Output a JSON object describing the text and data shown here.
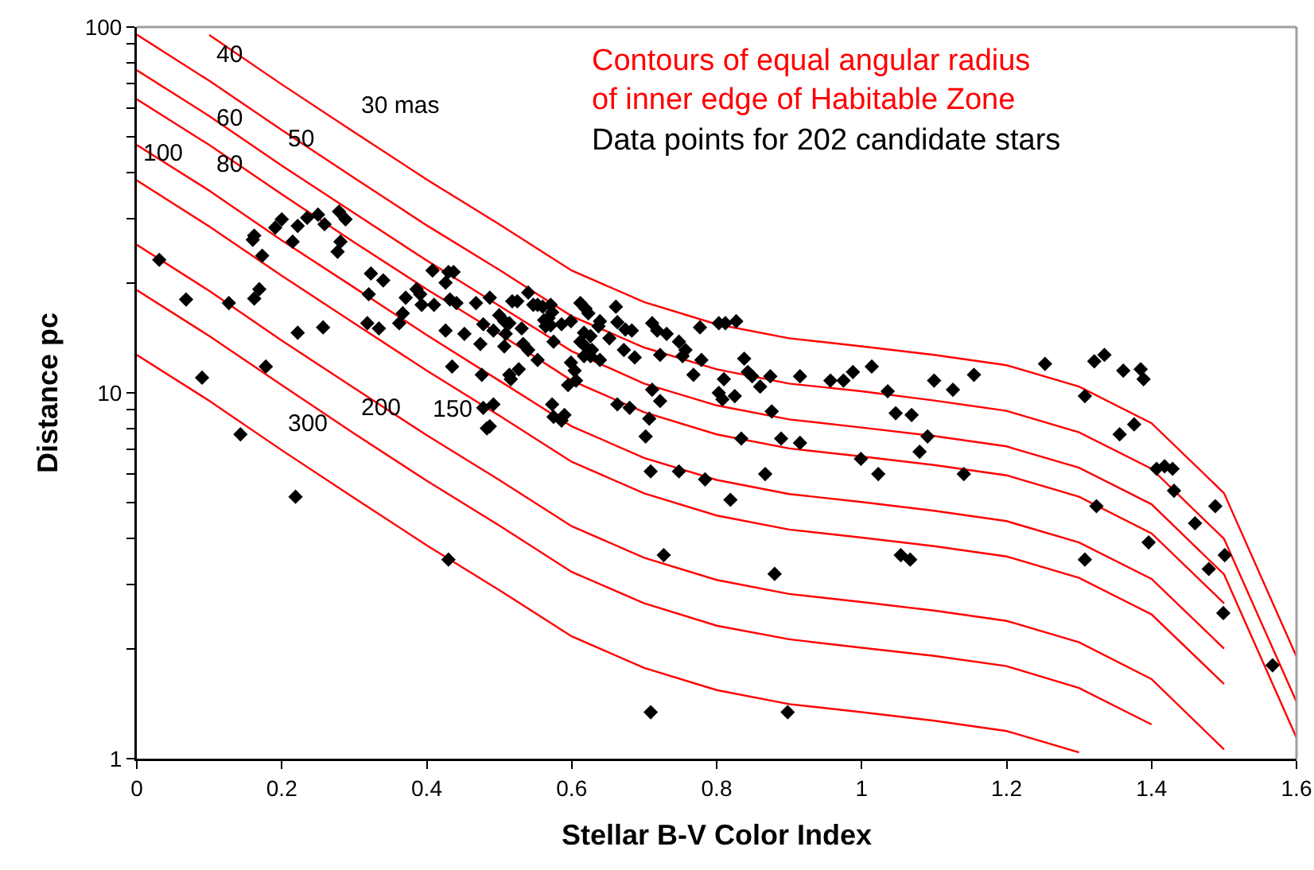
{
  "chart_data": {
    "type": "scatter",
    "xlabel": "Stellar B-V Color Index",
    "ylabel": "Distance pc",
    "log": "y",
    "grid": false,
    "legend": "top right",
    "xlim": [
      0,
      1.6
    ],
    "xticks": [
      0,
      0.2,
      0.4,
      0.6,
      0.8,
      1,
      1.2,
      1.4,
      1.6
    ],
    "ylim": [
      1,
      100
    ],
    "yticks": [
      1,
      {
        "value": 2,
        "label": null
      },
      {
        "value": 3,
        "label": null
      },
      {
        "value": 4,
        "label": null
      },
      {
        "value": 5,
        "label": null
      },
      {
        "value": 6,
        "label": null
      },
      {
        "value": 7,
        "label": null
      },
      {
        "value": 8,
        "label": null
      },
      {
        "value": 9,
        "label": null
      },
      10,
      {
        "value": 20,
        "label": null
      },
      {
        "value": 30,
        "label": null
      },
      {
        "value": 40,
        "label": null
      },
      {
        "value": 50,
        "label": null
      },
      {
        "value": 60,
        "label": null
      },
      {
        "value": 70,
        "label": null
      },
      {
        "value": 80,
        "label": null
      },
      {
        "value": 90,
        "label": null
      },
      100
    ],
    "annotations": [
      {
        "text": "30 mas",
        "x": 0.3,
        "y": 51.6
      },
      {
        "text": "40",
        "x": 0.1,
        "y": 71.3
      },
      {
        "text": "60",
        "x": 0.1,
        "y": 47.6
      },
      {
        "text": "50",
        "x": 0.2,
        "y": 41.8
      },
      {
        "text": "100",
        "x": 0,
        "y": 38.1
      },
      {
        "text": "80",
        "x": 0.1,
        "y": 35.7
      },
      {
        "text": "150",
        "x": 0.4,
        "y": 7.66
      },
      {
        "text": "200",
        "x": 0.3,
        "y": 7.74
      },
      {
        "text": "300",
        "x": 0.2,
        "y": 6.97
      }
    ],
    "x": [
      0,
      0.1,
      0.2,
      0.3,
      0.4,
      0.5,
      0.6,
      0.7,
      0.8,
      0.9,
      1,
      1.1,
      1.2,
      1.3,
      1.4,
      1.5,
      1.6
    ],
    "series": [
      {
        "name": "Contours of equal angular radius\nof inner edge of Habitable Zone",
        "type": "line",
        "line_style": "solid",
        "color": "#ff0000",
        "values": [
          null,
          95.1,
          69.7,
          51.6,
          38.3,
          28.9,
          21.6,
          17.7,
          15.4,
          14.1,
          13.4,
          12.7,
          11.9,
          10.4,
          8.26,
          5.32,
          1.9
        ]
      },
      {
        "type": "line",
        "line_style": "solid",
        "color": "#ff0000",
        "values": [
          95.3,
          71.3,
          52.3,
          38.7,
          28.7,
          21.7,
          16.2,
          13.3,
          11.6,
          10.6,
          10.1,
          9.53,
          8.93,
          7.8,
          6.2,
          3.99,
          1.43
        ]
      },
      {
        "type": "line",
        "line_style": "solid",
        "color": "#ff0000",
        "values": [
          76.2,
          57.1,
          41.8,
          31,
          23,
          17.3,
          13,
          10.6,
          9.24,
          8.46,
          8.04,
          7.62,
          7.14,
          6.24,
          4.96,
          3.19,
          1.14
        ]
      },
      {
        "type": "line",
        "line_style": "solid",
        "color": "#ff0000",
        "values": [
          63.5,
          47.6,
          34.9,
          25.8,
          19.2,
          14.5,
          10.8,
          8.85,
          7.7,
          7.05,
          6.7,
          6.35,
          5.95,
          5.2,
          4.13,
          2.66,
          null
        ]
      },
      {
        "type": "line",
        "line_style": "solid",
        "color": "#ff0000",
        "values": [
          47.6,
          35.7,
          26.1,
          19.4,
          14.4,
          10.8,
          8.1,
          6.64,
          5.78,
          5.29,
          5.03,
          4.76,
          4.46,
          3.9,
          3.1,
          2,
          null
        ]
      },
      {
        "type": "line",
        "line_style": "solid",
        "color": "#ff0000",
        "values": [
          38.1,
          28.5,
          20.9,
          15.5,
          11.5,
          8.67,
          6.48,
          5.31,
          4.62,
          4.23,
          4.02,
          3.81,
          3.57,
          3.12,
          2.48,
          1.6,
          null
        ]
      },
      {
        "type": "line",
        "line_style": "solid",
        "color": "#ff0000",
        "values": [
          25.4,
          19,
          13.9,
          10.3,
          7.66,
          5.78,
          4.32,
          3.54,
          3.08,
          2.82,
          2.68,
          2.54,
          2.38,
          2.08,
          1.65,
          1.06,
          null
        ]
      },
      {
        "type": "line",
        "line_style": "solid",
        "color": "#ff0000",
        "values": [
          19.1,
          14.3,
          10.5,
          7.74,
          5.75,
          4.34,
          3.24,
          2.66,
          2.31,
          2.12,
          2.01,
          1.91,
          1.79,
          1.56,
          1.24,
          null,
          null
        ]
      },
      {
        "type": "line",
        "line_style": "solid",
        "color": "#ff0000",
        "values": [
          12.7,
          9.51,
          6.97,
          5.16,
          3.83,
          2.89,
          2.16,
          1.77,
          1.54,
          1.41,
          1.34,
          1.27,
          1.19,
          1.04,
          null,
          null,
          null
        ]
      },
      {
        "name": "Data points for 202 candidate stars",
        "marker": "diamond",
        "color": "#000000",
        "x": [
          0.031,
          0.068,
          0.127,
          0.09,
          0.178,
          0.222,
          0.257,
          0.162,
          0.169,
          0.173,
          0.16,
          0.162,
          0.191,
          0.2,
          0.215,
          0.222,
          0.235,
          0.25,
          0.259,
          0.279,
          0.288,
          0.281,
          0.277,
          0.323,
          0.32,
          0.34,
          0.318,
          0.334,
          0.362,
          0.367,
          0.371,
          0.386,
          0.391,
          0.393,
          0.41,
          0.408,
          0.426,
          0.43,
          0.437,
          0.432,
          0.441,
          0.426,
          0.435,
          0.452,
          0.468,
          0.474,
          0.478,
          0.487,
          0.476,
          0.492,
          0.5,
          0.507,
          0.514,
          0.518,
          0.525,
          0.509,
          0.507,
          0.514,
          0.516,
          0.527,
          0.531,
          0.54,
          0.547,
          0.553,
          0.56,
          0.571,
          0.573,
          0.568,
          0.562,
          0.564,
          0.571,
          0.533,
          0.54,
          0.553,
          0.575,
          0.586,
          0.599,
          0.612,
          0.619,
          0.623,
          0.639,
          0.637,
          0.617,
          0.626,
          0.612,
          0.619,
          0.628,
          0.617,
          0.626,
          0.639,
          0.599,
          0.604,
          0.606,
          0.595,
          0.478,
          0.492,
          0.483,
          0.487,
          0.573,
          0.575,
          0.586,
          0.59,
          0.661,
          0.652,
          0.663,
          0.674,
          0.683,
          0.672,
          0.687,
          0.711,
          0.718,
          0.731,
          0.722,
          0.748,
          0.757,
          0.753,
          0.777,
          0.779,
          0.768,
          0.803,
          0.812,
          0.827,
          0.81,
          0.803,
          0.808,
          0.825,
          0.838,
          0.843,
          0.849,
          0.86,
          0.874,
          0.915,
          0.957,
          0.975,
          0.988,
          1.014,
          1.036,
          0.711,
          0.722,
          0.707,
          0.702,
          0.663,
          0.68,
          0.834,
          0.889,
          0.915,
          0.876,
          0.709,
          0.748,
          0.784,
          0.867,
          0.819,
          0.999,
          1.023,
          1.047,
          1.069,
          1.1,
          1.126,
          1.155,
          1.091,
          1.08,
          1.141,
          1.253,
          1.321,
          1.335,
          1.361,
          1.385,
          1.389,
          1.308,
          1.356,
          1.376,
          1.407,
          1.418,
          1.429,
          1.431,
          1.324,
          1.488,
          0.727,
          0.88,
          1.054,
          1.067,
          0.709,
          0.898,
          1.308,
          1.46,
          1.396,
          1.501,
          1.479,
          1.499,
          1.567,
          0.143,
          0.219,
          0.43
        ],
        "values": [
          23.1,
          18,
          17.6,
          11,
          11.8,
          14.6,
          15.1,
          18.1,
          19.2,
          23.7,
          26.2,
          26.9,
          28.3,
          29.8,
          25.9,
          28.6,
          30.1,
          30.7,
          28.9,
          31.3,
          29.8,
          25.9,
          24.3,
          21.2,
          18.6,
          20.3,
          15.5,
          15,
          15.5,
          16.5,
          18.2,
          19.2,
          18.6,
          17.4,
          17.4,
          21.6,
          20,
          21.4,
          21.4,
          18,
          17.6,
          14.8,
          11.8,
          14.5,
          17.6,
          13.6,
          15.4,
          18.2,
          11.2,
          14.8,
          16.3,
          15.7,
          15.5,
          17.8,
          17.8,
          14.5,
          13.4,
          11.2,
          10.9,
          11.6,
          15,
          18.8,
          17.4,
          17.4,
          17.2,
          17.4,
          16.6,
          16,
          15.8,
          15.2,
          15.3,
          13.6,
          13.1,
          12.3,
          13.8,
          15.4,
          15.7,
          17.6,
          17,
          16.5,
          15.7,
          15.2,
          14.6,
          14.3,
          13.8,
          13.4,
          13.1,
          12.6,
          12.6,
          12.3,
          12.1,
          11.5,
          10.8,
          10.5,
          9.1,
          9.3,
          8,
          8.1,
          9.3,
          8.6,
          8.4,
          8.7,
          17.2,
          14.1,
          15.6,
          14.9,
          14.8,
          13.1,
          12.5,
          15.5,
          14.8,
          14.5,
          12.7,
          13.8,
          13.1,
          12.6,
          15.1,
          12.3,
          11.2,
          15.5,
          15.5,
          15.7,
          10.9,
          10,
          9.6,
          9.8,
          12.4,
          11.4,
          11.1,
          10.4,
          11.1,
          11.1,
          10.8,
          10.8,
          11.4,
          11.8,
          10.1,
          10.2,
          9.5,
          8.5,
          7.6,
          9.3,
          9.1,
          7.5,
          7.5,
          7.3,
          8.9,
          6.1,
          6.1,
          5.8,
          6,
          5.1,
          6.6,
          6,
          8.8,
          8.7,
          10.8,
          10.2,
          11.2,
          7.6,
          6.9,
          6,
          12,
          12.2,
          12.7,
          11.5,
          11.6,
          10.9,
          9.8,
          7.7,
          8.2,
          6.2,
          6.3,
          6.2,
          5.4,
          4.9,
          4.9,
          3.6,
          3.2,
          3.6,
          3.5,
          1.34,
          1.34,
          3.5,
          4.4,
          3.9,
          3.6,
          3.3,
          2.5,
          1.8,
          7.7,
          5.2,
          3.5
        ]
      }
    ]
  }
}
